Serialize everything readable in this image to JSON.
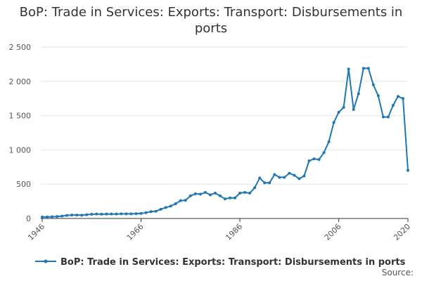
{
  "chart_data": {
    "type": "line",
    "title": "BoP: Trade in Services: Exports: Transport: Disbursements in ports",
    "xlabel": "",
    "ylabel": "",
    "xlim": [
      1946,
      2020
    ],
    "ylim": [
      0,
      2500
    ],
    "x_ticks": [
      "1946",
      "1966",
      "1986",
      "2006",
      "2020"
    ],
    "y_ticks": [
      "0",
      "500",
      "1 000",
      "1 500",
      "2 000",
      "2 500"
    ],
    "grid": "horizontal",
    "legend_position": "bottom",
    "series": [
      {
        "name": "BoP: Trade in Services: Exports: Transport: Disbursements in ports",
        "color": "#1f77b4",
        "x": [
          1946,
          1947,
          1948,
          1949,
          1950,
          1951,
          1952,
          1953,
          1954,
          1955,
          1956,
          1957,
          1958,
          1959,
          1960,
          1961,
          1962,
          1963,
          1964,
          1965,
          1966,
          1967,
          1968,
          1969,
          1970,
          1971,
          1972,
          1973,
          1974,
          1975,
          1976,
          1977,
          1978,
          1979,
          1980,
          1981,
          1982,
          1983,
          1984,
          1985,
          1986,
          1987,
          1988,
          1989,
          1990,
          1991,
          1992,
          1993,
          1994,
          1995,
          1996,
          1997,
          1998,
          1999,
          2000,
          2001,
          2002,
          2003,
          2004,
          2005,
          2006,
          2007,
          2008,
          2009,
          2010,
          2011,
          2012,
          2013,
          2014,
          2015,
          2016,
          2017,
          2018,
          2019,
          2020
        ],
        "values": [
          22,
          22,
          25,
          28,
          35,
          45,
          50,
          50,
          48,
          55,
          62,
          65,
          63,
          65,
          65,
          65,
          68,
          68,
          68,
          70,
          73,
          85,
          100,
          105,
          135,
          160,
          180,
          215,
          260,
          265,
          330,
          360,
          355,
          380,
          345,
          370,
          330,
          285,
          300,
          300,
          370,
          380,
          370,
          450,
          590,
          520,
          520,
          640,
          600,
          600,
          660,
          630,
          580,
          620,
          840,
          870,
          860,
          960,
          1120,
          1400,
          1550,
          1620,
          2180,
          1590,
          1820,
          2190,
          2190,
          1950,
          1790,
          1480,
          1480,
          1650,
          1780,
          1750,
          700
        ]
      }
    ]
  },
  "source_label": "Source:"
}
